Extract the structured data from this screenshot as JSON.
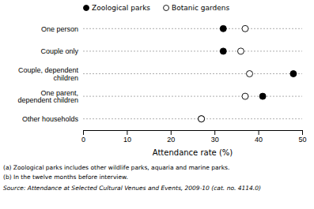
{
  "chart_data": {
    "type": "dot",
    "orientation": "horizontal",
    "categories": [
      "One person",
      "Couple only",
      "Couple, dependent\nchildren",
      "One parent,\ndependent children",
      "Other households"
    ],
    "series": [
      {
        "name": "Zoological parks",
        "color": "black",
        "marker": "circle",
        "values": [
          32,
          32,
          48,
          41,
          27
        ]
      },
      {
        "name": "Botanic gardens",
        "color": "white",
        "marker": "circle",
        "values": [
          37,
          36,
          38,
          37,
          27
        ]
      }
    ],
    "xlabel": "Attendance rate (%)",
    "xlim": [
      0,
      50
    ],
    "xticks": [
      0,
      10,
      20,
      30,
      40,
      50
    ],
    "legend": "top",
    "annotations": [
      "(a) Zoological parks includes other wildlife parks, aquaria and marine parks.",
      "(b) In the twelve months before interview.",
      "Source: Attendance at Selected Cultural Venues and Events, 2009-10 (cat. no. 4114.0)"
    ]
  }
}
